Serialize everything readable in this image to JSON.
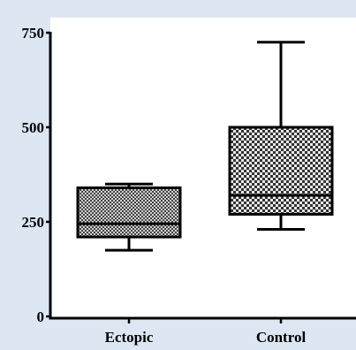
{
  "chart_data": {
    "type": "box",
    "title": "",
    "xlabel": "",
    "ylabel": "",
    "ylim": [
      0,
      780
    ],
    "yticks": [
      0,
      250,
      500,
      750
    ],
    "ytick_labels": [
      "0",
      "250",
      "500",
      "750"
    ],
    "categories": [
      "Ectopic",
      "Control"
    ],
    "boxes": [
      {
        "category": "Ectopic",
        "min": 175,
        "q1": 210,
        "median": 245,
        "q3": 340,
        "max": 350,
        "fill": "#a8a8a8"
      },
      {
        "category": "Control",
        "min": 230,
        "q1": 270,
        "median": 320,
        "q3": 500,
        "max": 725,
        "fill": "#c8c8c8"
      }
    ],
    "grid": false,
    "legend": "none"
  }
}
